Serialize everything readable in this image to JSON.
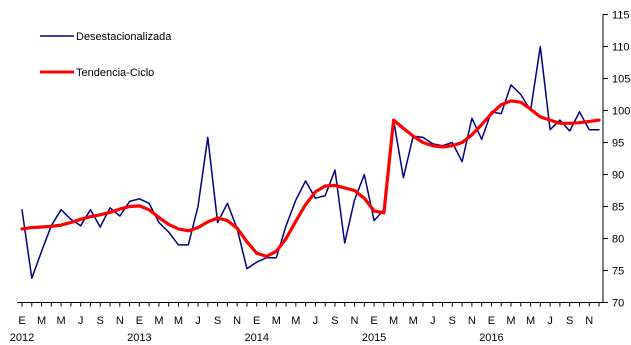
{
  "chart_data": {
    "type": "line",
    "x": [
      "2012-01",
      "2012-02",
      "2012-03",
      "2012-04",
      "2012-05",
      "2012-06",
      "2012-07",
      "2012-08",
      "2012-09",
      "2012-10",
      "2012-11",
      "2012-12",
      "2013-01",
      "2013-02",
      "2013-03",
      "2013-04",
      "2013-05",
      "2013-06",
      "2013-07",
      "2013-08",
      "2013-09",
      "2013-10",
      "2013-11",
      "2013-12",
      "2014-01",
      "2014-02",
      "2014-03",
      "2014-04",
      "2014-05",
      "2014-06",
      "2014-07",
      "2014-08",
      "2014-09",
      "2014-10",
      "2014-11",
      "2014-12",
      "2015-01",
      "2015-02",
      "2015-03",
      "2015-04",
      "2015-05",
      "2015-06",
      "2015-07",
      "2015-08",
      "2015-09",
      "2015-10",
      "2015-11",
      "2015-12",
      "2016-01",
      "2016-02",
      "2016-03",
      "2016-04",
      "2016-05",
      "2016-06",
      "2016-07",
      "2016-08",
      "2016-09",
      "2016-10",
      "2016-11",
      "2016-12"
    ],
    "series": [
      {
        "name": "Desestacionalizada",
        "color": "#000080",
        "values": [
          84.5,
          73.8,
          78.0,
          82.0,
          84.5,
          83.0,
          82.0,
          84.5,
          81.8,
          84.8,
          83.5,
          85.8,
          86.2,
          85.5,
          82.5,
          81.0,
          79.0,
          79.0,
          85.0,
          95.8,
          82.5,
          85.5,
          81.5,
          75.3,
          76.3,
          77.0,
          77.0,
          82.0,
          86.0,
          89.0,
          86.3,
          86.7,
          90.7,
          79.3,
          86.0,
          90.0,
          82.8,
          84.5,
          98.5,
          89.5,
          96.0,
          95.8,
          94.8,
          94.5,
          95.0,
          92.0,
          98.8,
          95.5,
          99.8,
          99.5,
          104.0,
          102.5,
          100.0,
          110.0,
          97.0,
          98.5,
          96.8,
          99.8,
          97.0,
          97.0
        ]
      },
      {
        "name": "Tendencia-Ciclo",
        "color": "#ff0000",
        "values": [
          81.5,
          81.7,
          81.8,
          81.9,
          82.1,
          82.5,
          83.0,
          83.4,
          83.7,
          84.1,
          84.6,
          85.0,
          85.1,
          84.5,
          83.3,
          82.2,
          81.5,
          81.2,
          81.7,
          82.6,
          83.2,
          82.8,
          81.6,
          79.5,
          77.7,
          77.2,
          78.0,
          80.0,
          82.7,
          85.3,
          87.3,
          88.2,
          88.3,
          87.9,
          87.5,
          86.3,
          84.3,
          84.0,
          98.5,
          97.2,
          96.0,
          95.0,
          94.5,
          94.3,
          94.5,
          95.0,
          96.2,
          97.8,
          99.5,
          100.9,
          101.5,
          101.3,
          100.2,
          99.0,
          98.5,
          98.0,
          98.0,
          98.1,
          98.3,
          98.5
        ]
      }
    ],
    "ylim": [
      70,
      115
    ],
    "yticks": [
      "70",
      "75",
      "80",
      "85",
      "90",
      "95",
      "100",
      "105",
      "110",
      "115"
    ],
    "month_labels": [
      "E",
      "M",
      "M",
      "J",
      "S",
      "N"
    ],
    "years": [
      "2012",
      "2013",
      "2014",
      "2015",
      "2016"
    ],
    "grid": false,
    "legend_position": "top-left",
    "y_axis_side": "right"
  }
}
